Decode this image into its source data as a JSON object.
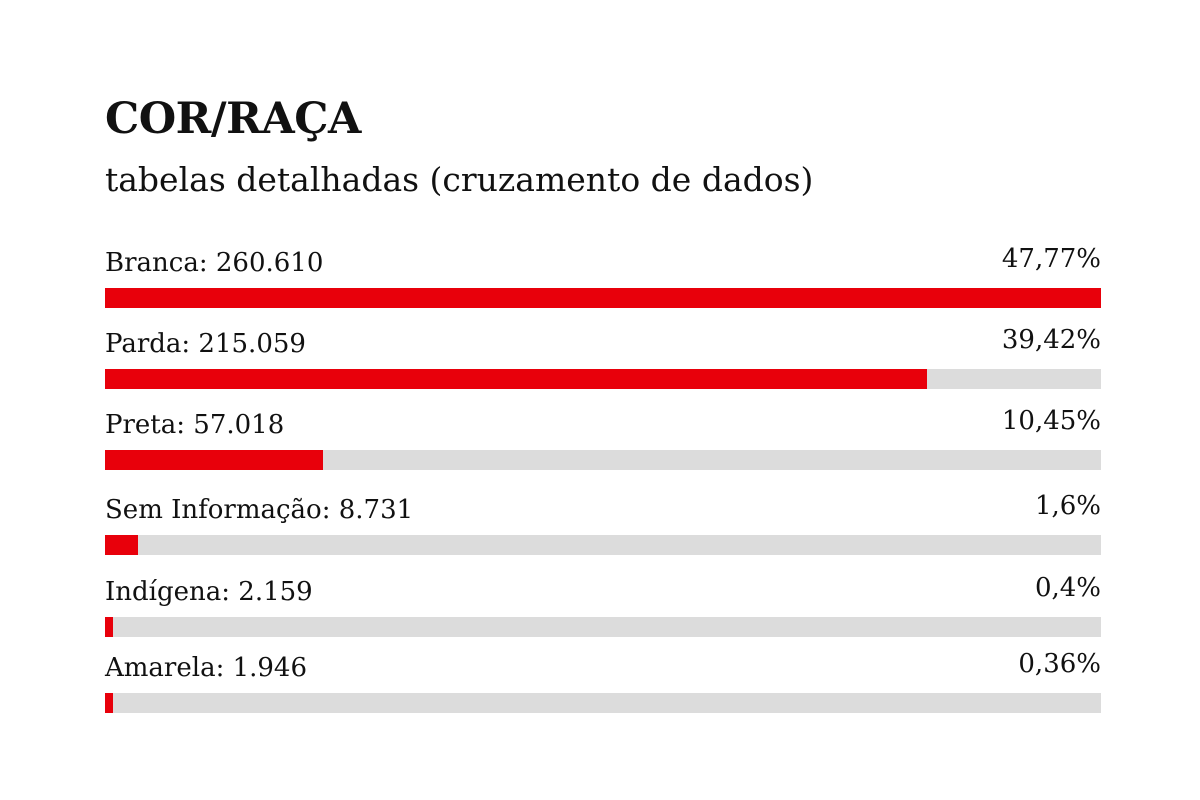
{
  "chart_data": {
    "type": "bar",
    "title": "COR/RAÇA",
    "subtitle": "tabelas detalhadas (cruzamento de dados)",
    "bar_color": "#e8000b",
    "track_color": "#dcdcdc",
    "categories": [
      "Branca",
      "Parda",
      "Preta",
      "Sem Informação",
      "Indígena",
      "Amarela"
    ],
    "rows": [
      {
        "label": "Branca: 260.610",
        "percent_label": "47,77%",
        "count": 260610,
        "percent": 47.77
      },
      {
        "label": "Parda: 215.059",
        "percent_label": "39,42%",
        "count": 215059,
        "percent": 39.42
      },
      {
        "label": "Preta: 57.018",
        "percent_label": "10,45%",
        "count": 57018,
        "percent": 10.45
      },
      {
        "label": "Sem Informação: 8.731",
        "percent_label": "1,6%",
        "count": 8731,
        "percent": 1.6
      },
      {
        "label": "Indígena: 2.159",
        "percent_label": "0,4%",
        "count": 2159,
        "percent": 0.4
      },
      {
        "label": "Amarela: 1.946",
        "percent_label": "0,36%",
        "count": 1946,
        "percent": 0.36
      }
    ]
  }
}
